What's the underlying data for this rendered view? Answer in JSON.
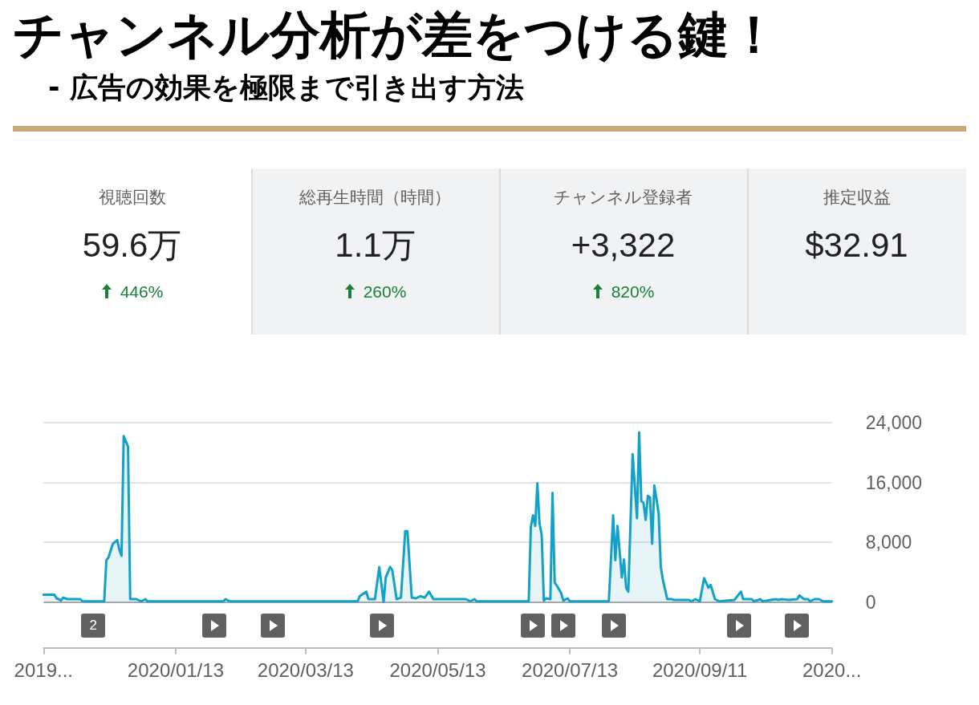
{
  "chart_data": [
    {
      "type": "other",
      "title": "チャンネル分析が差をつける鍵！",
      "subtitle": "- 広告の効果を極限まで引き出す方法"
    },
    {
      "type": "other",
      "title": "視聴回数",
      "annotations": [
        "59.6万",
        "446%"
      ]
    },
    {
      "type": "other",
      "title": "総再生時間（時間）",
      "annotations": [
        "1.1万",
        "260%"
      ]
    },
    {
      "type": "other",
      "title": "チャンネル登録者",
      "annotations": [
        "+3,322",
        "820%"
      ]
    },
    {
      "type": "other",
      "title": "推定収益",
      "annotations": [
        "$32.91"
      ]
    },
    {
      "type": "area",
      "color": "#13a1c8",
      "x": [
        "2019-11-13",
        "2019-11-18",
        "2019-11-19",
        "2019-11-20",
        "2019-11-21",
        "2019-11-22",
        "2019-11-23",
        "2019-11-24",
        "2019-11-30",
        "2019-12-01",
        "2019-12-11",
        "2019-12-12",
        "2019-12-13",
        "2019-12-15",
        "2019-12-17",
        "2019-12-18",
        "2019-12-19",
        "2019-12-20",
        "2019-12-22",
        "2019-12-23",
        "2019-12-26",
        "2019-12-28",
        "2019-12-30",
        "2019-12-31",
        "2020-02-04",
        "2020-02-05",
        "2020-02-07",
        "2020-04-06",
        "2020-04-07",
        "2020-04-10",
        "2020-04-11",
        "2020-04-14",
        "2020-04-16",
        "2020-04-18",
        "2020-04-19",
        "2020-04-21",
        "2020-04-22",
        "2020-04-24",
        "2020-04-26",
        "2020-04-28",
        "2020-04-29",
        "2020-05-01",
        "2020-05-03",
        "2020-05-05",
        "2020-05-07",
        "2020-05-09",
        "2020-05-11",
        "2020-05-26",
        "2020-05-28",
        "2020-05-30",
        "2020-05-31",
        "2020-06-24",
        "2020-06-25",
        "2020-06-26",
        "2020-06-27",
        "2020-06-28",
        "2020-06-29",
        "2020-06-30",
        "2020-07-01",
        "2020-07-02",
        "2020-07-04",
        "2020-07-05",
        "2020-07-06",
        "2020-07-07",
        "2020-07-09",
        "2020-07-10",
        "2020-07-12",
        "2020-07-13",
        "2020-07-31",
        "2020-08-02",
        "2020-08-03",
        "2020-08-04",
        "2020-08-06",
        "2020-08-07",
        "2020-08-08",
        "2020-08-09",
        "2020-08-11",
        "2020-08-13",
        "2020-08-14",
        "2020-08-15",
        "2020-08-16",
        "2020-08-17",
        "2020-08-18",
        "2020-08-19",
        "2020-08-20",
        "2020-08-21",
        "2020-08-23",
        "2020-08-24",
        "2020-08-25",
        "2020-08-27",
        "2020-08-29",
        "2020-08-30",
        "2020-09-06",
        "2020-09-07",
        "2020-09-09",
        "2020-09-11",
        "2020-09-13",
        "2020-09-15",
        "2020-09-16",
        "2020-09-18",
        "2020-09-20",
        "2020-09-27",
        "2020-09-30",
        "2020-10-01",
        "2020-10-05",
        "2020-10-06",
        "2020-10-09",
        "2020-10-10",
        "2020-10-16",
        "2020-10-17",
        "2020-10-19",
        "2020-10-22",
        "2020-10-26",
        "2020-10-27",
        "2020-10-29",
        "2020-10-31",
        "2020-11-01",
        "2020-11-03",
        "2020-11-05",
        "2020-11-07",
        "2020-11-11"
      ],
      "values": [
        1000,
        1000,
        500,
        400,
        200,
        600,
        500,
        400,
        400,
        100,
        100,
        5600,
        6000,
        7800,
        8300,
        7000,
        6200,
        22200,
        20800,
        400,
        400,
        100,
        400,
        100,
        100,
        400,
        100,
        100,
        800,
        1400,
        400,
        400,
        4700,
        0,
        3300,
        4700,
        4300,
        400,
        600,
        9500,
        9500,
        600,
        500,
        800,
        600,
        1400,
        400,
        400,
        100,
        400,
        100,
        100,
        10100,
        11600,
        10200,
        15900,
        10500,
        9000,
        200,
        500,
        400,
        14600,
        2600,
        2200,
        1200,
        200,
        500,
        100,
        100,
        11600,
        5600,
        10200,
        3300,
        5700,
        1900,
        1400,
        19800,
        11200,
        22700,
        13500,
        13300,
        11000,
        14200,
        14000,
        7800,
        15600,
        11900,
        4700,
        2900,
        400,
        400,
        300,
        300,
        100,
        400,
        100,
        3200,
        1900,
        2300,
        400,
        100,
        300,
        1400,
        400,
        400,
        100,
        400,
        100,
        400,
        300,
        400,
        300,
        400,
        900,
        400,
        400,
        100,
        400,
        400,
        100,
        100
      ],
      "xlim": [
        "2019-11-13",
        "2020-11-11"
      ],
      "xticks": [
        {
          "value": "2019-11-13",
          "label": "2019..."
        },
        {
          "value": "2020-01-13",
          "label": "2020/01/13"
        },
        {
          "value": "2020-03-13",
          "label": "2020/03/13"
        },
        {
          "value": "2020-05-13",
          "label": "2020/05/13"
        },
        {
          "value": "2020-07-13",
          "label": "2020/07/13"
        },
        {
          "value": "2020-09-11",
          "label": "2020/09/11"
        },
        {
          "value": "2020-11-11",
          "label": "2020..."
        }
      ],
      "ylim": [
        0,
        24000
      ],
      "yticks": [
        0,
        {
          "value": 8000,
          "label": "8,000"
        },
        {
          "value": 16000,
          "label": "16,000"
        },
        {
          "value": 24000,
          "label": "24,000"
        }
      ],
      "grid": "y",
      "annotations": [
        "2"
      ]
    }
  ]
}
